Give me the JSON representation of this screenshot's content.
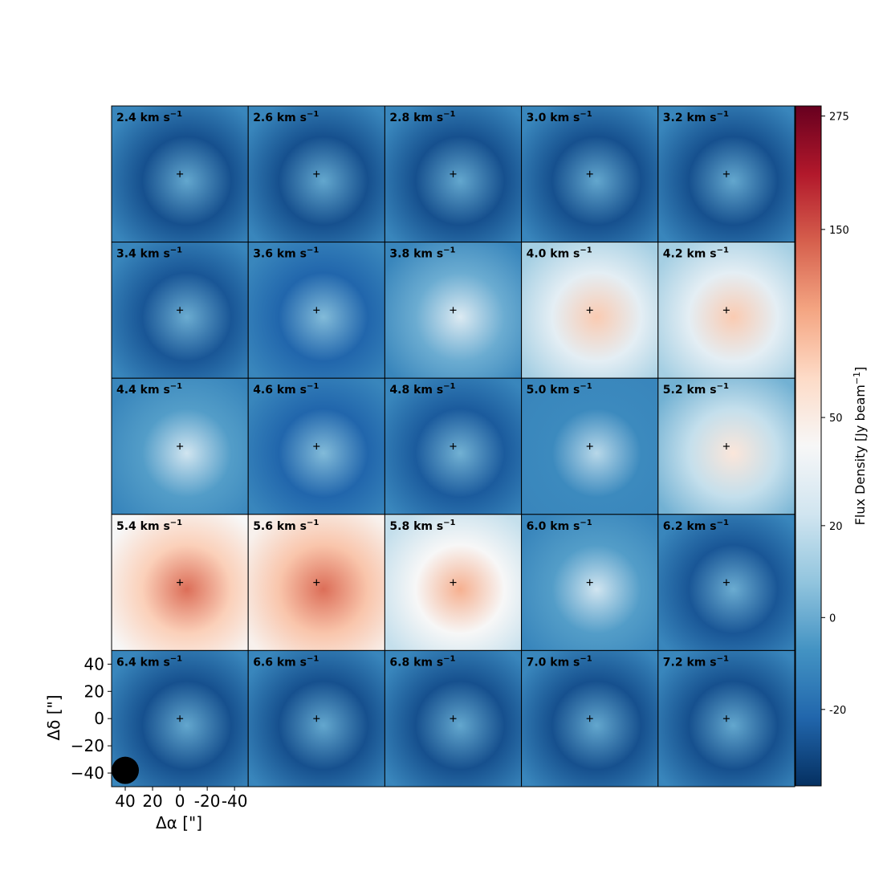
{
  "chart_data": {
    "type": "heatmap",
    "grid": {
      "rows": 5,
      "cols": 5
    },
    "panels": [
      {
        "label": "2.4 km s",
        "level": 0.06
      },
      {
        "label": "2.6 km s",
        "level": 0.06
      },
      {
        "label": "2.8 km s",
        "level": 0.06
      },
      {
        "label": "3.0 km s",
        "level": 0.06
      },
      {
        "label": "3.2 km s",
        "level": 0.06
      },
      {
        "label": "3.4 km s",
        "level": 0.07
      },
      {
        "label": "3.6 km s",
        "level": 0.1
      },
      {
        "label": "3.8 km s",
        "level": 0.25
      },
      {
        "label": "4.0 km s",
        "level": 0.45
      },
      {
        "label": "4.2 km s",
        "level": 0.45
      },
      {
        "label": "4.4 km s",
        "level": 0.22
      },
      {
        "label": "4.6 km s",
        "level": 0.1
      },
      {
        "label": "4.8 km s",
        "level": 0.08
      },
      {
        "label": "5.0 km s",
        "level": 0.18
      },
      {
        "label": "5.2 km s",
        "level": 0.38
      },
      {
        "label": "5.4 km s",
        "level": 0.62
      },
      {
        "label": "5.6 km s",
        "level": 0.64
      },
      {
        "label": "5.8 km s",
        "level": 0.5
      },
      {
        "label": "6.0 km s",
        "level": 0.22
      },
      {
        "label": "6.2 km s",
        "level": 0.07
      },
      {
        "label": "6.4 km s",
        "level": 0.06
      },
      {
        "label": "6.6 km s",
        "level": 0.06
      },
      {
        "label": "6.8 km s",
        "level": 0.06
      },
      {
        "label": "7.0 km s",
        "level": 0.06
      },
      {
        "label": "7.2 km s",
        "level": 0.06
      }
    ],
    "label_superscript": "−1",
    "xlabel": "Δα [\"]",
    "ylabel": "Δδ [\"]",
    "x_ticks": [
      "40",
      "20",
      "0",
      "-20",
      "-40"
    ],
    "x_tick_values": [
      40,
      20,
      0,
      -20,
      -40
    ],
    "y_ticks": [
      "40",
      "20",
      "0",
      "−20",
      "−40"
    ],
    "y_tick_values": [
      40,
      20,
      0,
      -20,
      -40
    ],
    "axis_range": [
      50,
      -50
    ],
    "colorbar": {
      "label": "Flux Density [Jy beam",
      "label_superscript": "−1",
      "label_close": "]",
      "ticks": [
        "275",
        "150",
        "50",
        "20",
        "0",
        "-20"
      ],
      "tick_values": [
        275,
        150,
        50,
        20,
        0,
        -20
      ],
      "range": [
        -40,
        290
      ],
      "scale": "arcsinh",
      "colormap": "RdBu_r"
    },
    "beam_marker": true,
    "center_marker": "+"
  }
}
